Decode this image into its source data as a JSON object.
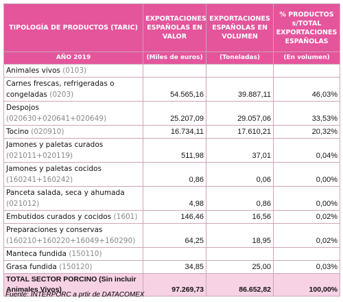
{
  "header": {
    "title": "TIPOLOGÍA DE PRODUCTOS (TARIC)",
    "columns": [
      "EXPORTACIONES ESPAÑOLAS EN VALOR",
      "EXPORTACIONES ESPAÑOLAS EN VOLUMEN",
      "% PRODUCTOS s/TOTAL EXPORTACIONES ESPAÑOLAS"
    ],
    "subheader": [
      "AÑO 2019",
      "(Miles de euros)",
      "(Toneladas)",
      "(En volumen)"
    ]
  },
  "rows": [
    {
      "name": "Animales vivos",
      "code": "(0103)"
    },
    {
      "name": "Carnes frescas, refrigeradas o congeladas",
      "code": "(0203)",
      "values": [
        "54.565,16",
        "39.887,11",
        "46,03%"
      ]
    },
    {
      "name": "Despojos",
      "code": "(020630+020641+020649)",
      "values": [
        "25.207,09",
        "29.057,06",
        "33,53%"
      ]
    },
    {
      "name": "Tocino",
      "code": "(020910)",
      "values": [
        "16.734,11",
        "17.610,21",
        "20,32%"
      ]
    },
    {
      "name": "Jamones y paletas curados",
      "code": "(021011+020119)",
      "values": [
        "511,98",
        "37,01",
        "0,04%"
      ]
    },
    {
      "name": "Jamones y paletas cocidos",
      "code": "(160241+160242)",
      "values": [
        "0,86",
        "0,06",
        "0,00%"
      ]
    },
    {
      "name": "Panceta salada, seca y ahumada",
      "code": "(021012)",
      "values": [
        "4,98",
        "0,86",
        "0,00%"
      ]
    },
    {
      "name": "Embutidos curados y cocidos",
      "code": "(1601)",
      "values": [
        "146,46",
        "16,56",
        "0,02%"
      ]
    },
    {
      "name": "Preparaciones y conservas",
      "code": "(160210+160220+16049+160290)",
      "values": [
        "64,25",
        "18,95",
        "0,02%"
      ]
    },
    {
      "name": "Manteca fundida",
      "code": "(150110)"
    },
    {
      "name": "Grasa fundida",
      "code": "(150120)",
      "values": [
        "34,85",
        "25,00",
        "0,03%"
      ]
    }
  ],
  "total": {
    "label": "TOTAL SECTOR PORCINO (Sin incluir Animales Vivos)",
    "values": [
      "97.269,73",
      "86.652,82",
      "100,00%"
    ]
  },
  "source": "Fuente: INTERPORC a prtir de DATACOMEX"
}
